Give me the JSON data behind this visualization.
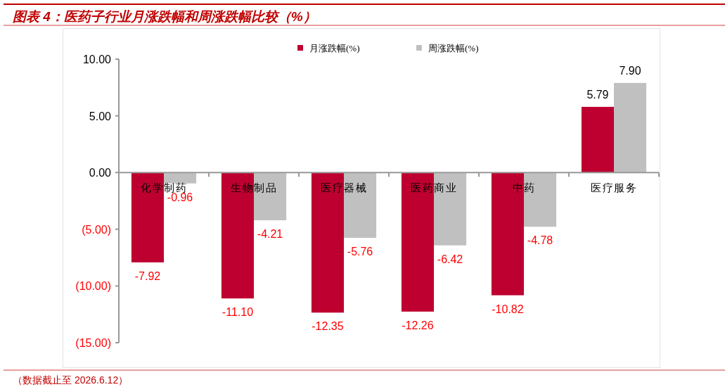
{
  "chart_data": {
    "type": "bar",
    "title": "图表 4：医药子行业月涨跌幅和周涨跌幅比较（%）",
    "categories": [
      "化学制药",
      "生物制品",
      "医疗器械",
      "医药商业",
      "中药",
      "医疗服务"
    ],
    "series": [
      {
        "name": "月涨跌幅(%)",
        "color": "#be0030",
        "values": [
          -7.92,
          -11.1,
          -12.35,
          -12.26,
          -10.82,
          5.79
        ],
        "value_labels": [
          "-7.92",
          "-11.10",
          "-12.35",
          "-12.26",
          "-10.82",
          "5.79"
        ]
      },
      {
        "name": "周涨跌幅(%)",
        "color": "#c0c0c0",
        "values": [
          -0.96,
          -4.21,
          -5.76,
          -6.42,
          -4.78,
          7.9
        ],
        "value_labels": [
          "-0.96",
          "-4.21",
          "-5.76",
          "-6.42",
          "-4.78",
          "7.90"
        ]
      }
    ],
    "ylim": [
      -15,
      10
    ],
    "yticks": [
      {
        "value": -15,
        "label": "(15.00)"
      },
      {
        "value": -10,
        "label": "(10.00)"
      },
      {
        "value": -5,
        "label": "(5.00)"
      },
      {
        "value": 0,
        "label": "0.00"
      },
      {
        "value": 5,
        "label": "5.00"
      },
      {
        "value": 10,
        "label": "10.00"
      }
    ],
    "legend": "top",
    "annotations": [
      "（数据截止至 2026.6.12）"
    ]
  }
}
